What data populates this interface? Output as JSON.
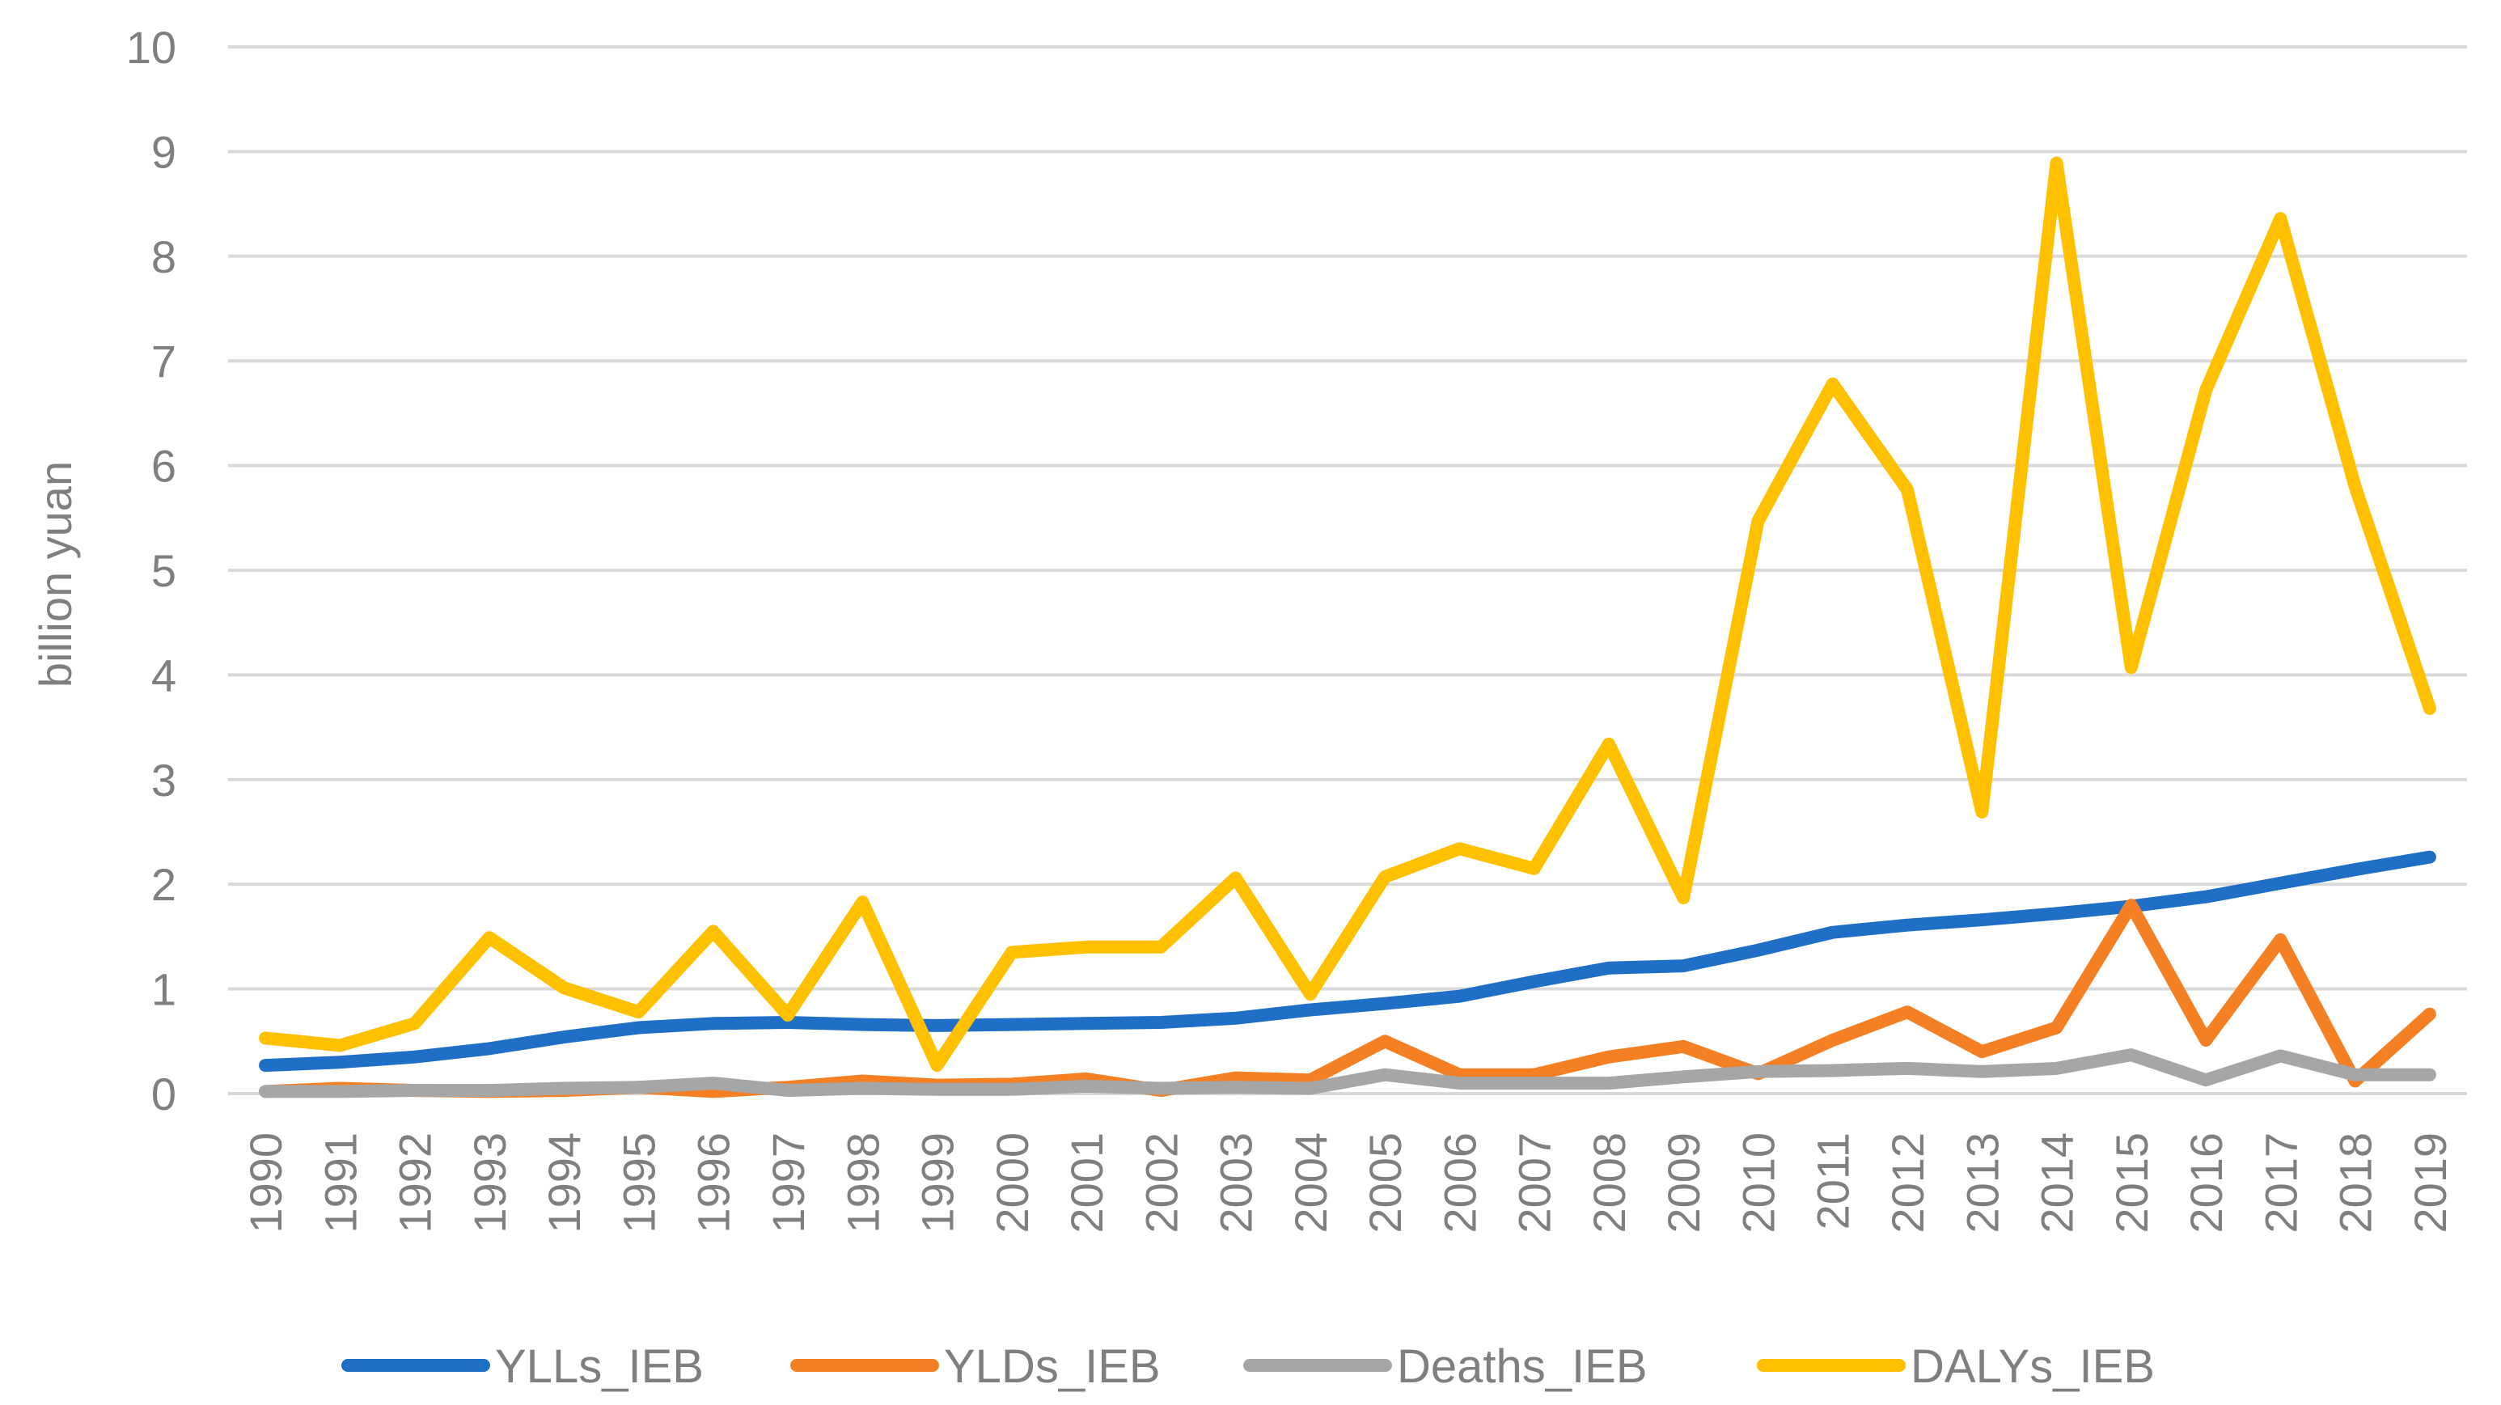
{
  "chart_data": {
    "type": "line",
    "title": "",
    "xlabel": "",
    "ylabel": "billion yuan",
    "ylim": [
      0,
      10
    ],
    "yticks": [
      "0",
      "1",
      "2",
      "3",
      "4",
      "5",
      "6",
      "7",
      "8",
      "9",
      "10"
    ],
    "grid": true,
    "legend_position": "bottom",
    "categories": [
      "1990",
      "1991",
      "1992",
      "1993",
      "1994",
      "1995",
      "1996",
      "1997",
      "1998",
      "1999",
      "2000",
      "2001",
      "2002",
      "2003",
      "2004",
      "2005",
      "2006",
      "2007",
      "2008",
      "2009",
      "2010",
      "2011",
      "2012",
      "2013",
      "2014",
      "2015",
      "2016",
      "2017",
      "2018",
      "2019"
    ],
    "series": [
      {
        "name": "YLLs_IEB",
        "color": "#1f6fc6",
        "values": [
          0.27,
          0.3,
          0.35,
          0.43,
          0.54,
          0.63,
          0.67,
          0.68,
          0.66,
          0.65,
          0.66,
          0.67,
          0.68,
          0.72,
          0.8,
          0.86,
          0.93,
          1.07,
          1.2,
          1.22,
          1.37,
          1.54,
          1.61,
          1.66,
          1.72,
          1.79,
          1.88,
          2.01,
          2.14,
          2.26
        ]
      },
      {
        "name": "YLDs_IEB",
        "color": "#f58024",
        "values": [
          0.02,
          0.05,
          0.03,
          0.02,
          0.03,
          0.06,
          0.02,
          0.06,
          0.12,
          0.08,
          0.09,
          0.14,
          0.03,
          0.15,
          0.13,
          0.5,
          0.18,
          0.18,
          0.35,
          0.45,
          0.19,
          0.51,
          0.78,
          0.4,
          0.63,
          1.8,
          0.51,
          1.47,
          0.12,
          0.76
        ]
      },
      {
        "name": "Deaths_IEB",
        "color": "#a6a6a6",
        "values": [
          0.02,
          0.02,
          0.03,
          0.03,
          0.05,
          0.06,
          0.1,
          0.03,
          0.05,
          0.04,
          0.04,
          0.07,
          0.05,
          0.06,
          0.05,
          0.18,
          0.1,
          0.1,
          0.1,
          0.16,
          0.21,
          0.22,
          0.24,
          0.21,
          0.24,
          0.37,
          0.13,
          0.36,
          0.18,
          0.18
        ]
      },
      {
        "name": "DALYs_IEB",
        "color": "#ffc000",
        "values": [
          0.53,
          0.46,
          0.67,
          1.49,
          1.01,
          0.78,
          1.55,
          0.75,
          1.83,
          0.27,
          1.35,
          1.4,
          1.4,
          2.06,
          0.95,
          2.07,
          2.34,
          2.15,
          3.34,
          1.87,
          5.47,
          6.78,
          5.77,
          2.69,
          8.89,
          4.07,
          6.72,
          8.36,
          5.8,
          3.68
        ]
      }
    ]
  }
}
